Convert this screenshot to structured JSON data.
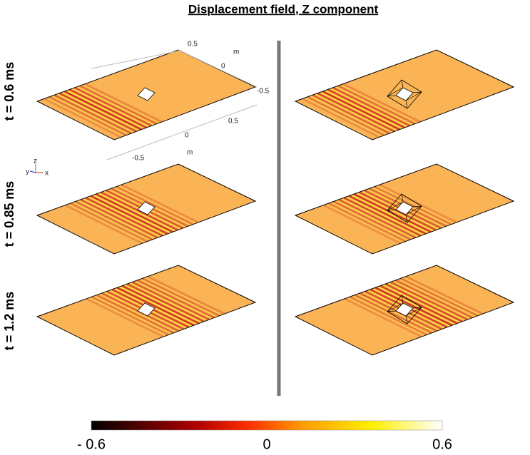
{
  "title": "Displacement field, Z component",
  "row_labels": [
    "t = 0.6 ms",
    "t = 0.85 ms",
    "t = 1.2 ms"
  ],
  "axis_labels": {
    "top": [
      "0.5",
      "m",
      "0",
      "-0.5"
    ],
    "bottom": [
      "0.5",
      "0",
      "m",
      "-0.5"
    ]
  },
  "triad": [
    "y",
    "z",
    "x"
  ],
  "colorbar": {
    "labels": [
      "- 0.6",
      "0",
      "0.6"
    ]
  }
}
